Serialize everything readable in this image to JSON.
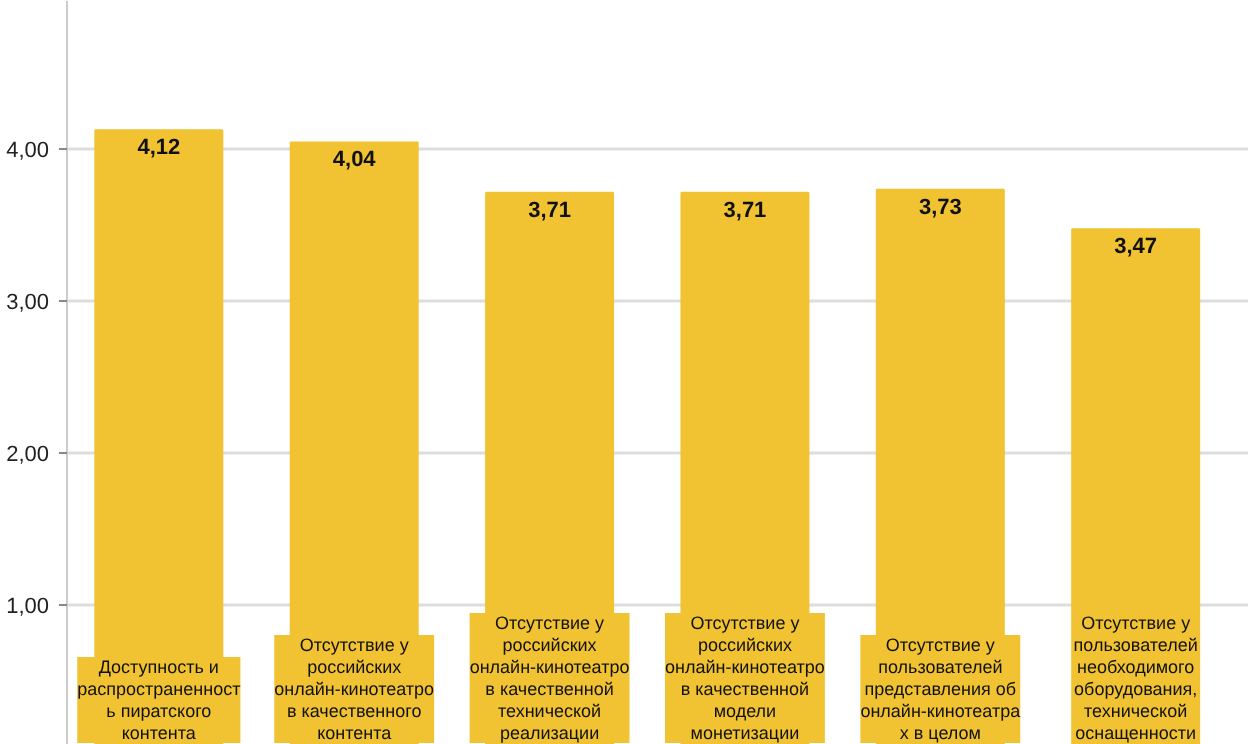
{
  "chart_data": {
    "type": "bar",
    "categories": [
      "Доступность и\nраспространенност\nь пиратского\nконтента",
      "Отсутствие у\nроссийских\nонлайн-кинотеатро\nв качественного\nконтента",
      "Отсутствие у\nроссийских\nонлайн-кинотеатро\nв качественной\nтехнической\nреализации",
      "Отсутствие у\nроссийских\nонлайн-кинотеатро\nв качественной\nмодели\nмонетизации",
      "Отсутствие у\nпользователей\nпредставления об\nонлайн-кинотеатра\nх в целом",
      "Отсутствие у\nпользователей\nнеобходимого\nоборудования,\nтехнической\nоснащенности"
    ],
    "values": [
      4.12,
      4.04,
      3.71,
      3.71,
      3.73,
      3.47
    ],
    "value_labels": [
      "4,12",
      "4,04",
      "3,71",
      "3,71",
      "3,73",
      "3,47"
    ],
    "color": "#f1c232",
    "ylim": [
      0.08,
      4.97
    ],
    "yticks": [
      {
        "value": 1,
        "label": "1,00"
      },
      {
        "value": 2,
        "label": "2,00"
      },
      {
        "value": 3,
        "label": "3,00"
      },
      {
        "value": 4,
        "label": "4,00"
      }
    ],
    "grid": "y"
  }
}
